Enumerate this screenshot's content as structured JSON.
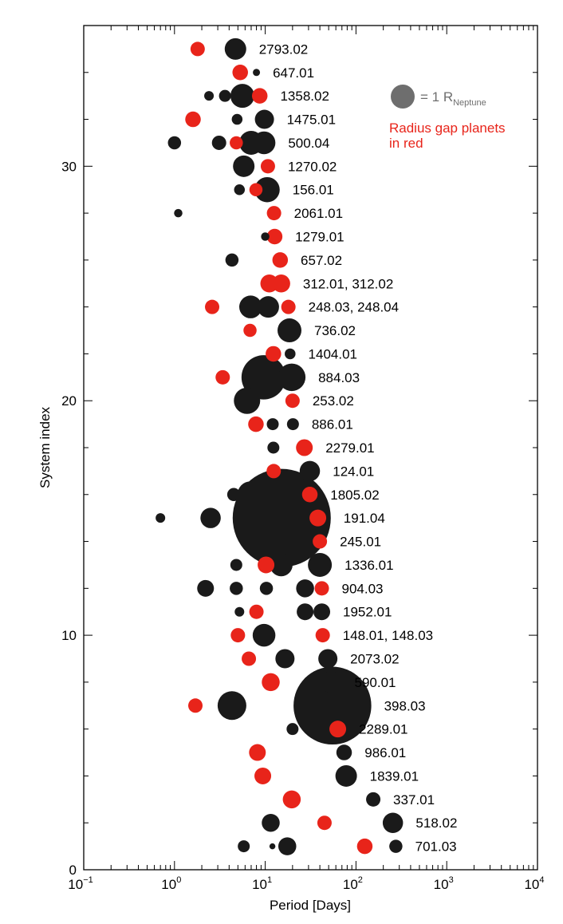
{
  "chart_data": {
    "type": "scatter",
    "xlabel": "Period [Days]",
    "ylabel": "System index",
    "xscale": "log",
    "xlim": [
      0.1,
      10000
    ],
    "ylim": [
      0,
      36
    ],
    "x_ticks": [
      {
        "value": 0.1,
        "base": "10",
        "exp": "−1"
      },
      {
        "value": 1,
        "base": "10",
        "exp": "0"
      },
      {
        "value": 10,
        "base": "10",
        "exp": "1"
      },
      {
        "value": 100,
        "base": "10",
        "exp": "2"
      },
      {
        "value": 1000,
        "base": "10",
        "exp": "3"
      },
      {
        "value": 10000,
        "base": "10",
        "exp": "4"
      }
    ],
    "y_tick_labels": [
      0,
      10,
      20,
      30
    ],
    "legend": {
      "placement": "top-right",
      "size_label": "= 1 R",
      "size_label_subscript": "Neptune",
      "size_marker_radius_rneptune": 1,
      "note_lines": [
        "Radius gap planets",
        "in red"
      ]
    },
    "colors": {
      "normal": "#1a1a1a",
      "radius_gap": "#e8241a",
      "legend_marker": "#6e6e6e",
      "axis": "#000000"
    },
    "systems": [
      {
        "index": 35,
        "label": "2793.02"
      },
      {
        "index": 34,
        "label": "647.01"
      },
      {
        "index": 33,
        "label": "1358.02"
      },
      {
        "index": 32,
        "label": "1475.01"
      },
      {
        "index": 31,
        "label": "500.04"
      },
      {
        "index": 30,
        "label": "1270.02"
      },
      {
        "index": 29,
        "label": "156.01"
      },
      {
        "index": 28,
        "label": "2061.01"
      },
      {
        "index": 27,
        "label": "1279.01"
      },
      {
        "index": 26,
        "label": "657.02"
      },
      {
        "index": 25,
        "label": "312.01, 312.02"
      },
      {
        "index": 24,
        "label": "248.03, 248.04"
      },
      {
        "index": 23,
        "label": "736.02"
      },
      {
        "index": 22,
        "label": "1404.01"
      },
      {
        "index": 21,
        "label": "884.03"
      },
      {
        "index": 20,
        "label": "253.02"
      },
      {
        "index": 19,
        "label": "886.01"
      },
      {
        "index": 18,
        "label": "2279.01"
      },
      {
        "index": 17,
        "label": "124.01"
      },
      {
        "index": 16,
        "label": "1805.02"
      },
      {
        "index": 15,
        "label": "191.04"
      },
      {
        "index": 14,
        "label": "245.01"
      },
      {
        "index": 13,
        "label": "1336.01"
      },
      {
        "index": 12,
        "label": "904.03"
      },
      {
        "index": 11,
        "label": "1952.01"
      },
      {
        "index": 10,
        "label": "148.01, 148.03"
      },
      {
        "index": 9,
        "label": "2073.02"
      },
      {
        "index": 8,
        "label": "590.01"
      },
      {
        "index": 7,
        "label": "398.03"
      },
      {
        "index": 6,
        "label": "2289.01"
      },
      {
        "index": 5,
        "label": "986.01"
      },
      {
        "index": 4,
        "label": "1839.01"
      },
      {
        "index": 3,
        "label": "337.01"
      },
      {
        "index": 2,
        "label": "518.02"
      },
      {
        "index": 1,
        "label": "701.03"
      }
    ],
    "planets": [
      {
        "s": 35,
        "p": 1.8,
        "r": 0.6,
        "gap": true
      },
      {
        "s": 35,
        "p": 4.7,
        "r": 0.9,
        "gap": false
      },
      {
        "s": 34,
        "p": 5.3,
        "r": 0.65,
        "gap": true
      },
      {
        "s": 34,
        "p": 8.0,
        "r": 0.3,
        "gap": false
      },
      {
        "s": 33,
        "p": 2.4,
        "r": 0.4,
        "gap": false
      },
      {
        "s": 33,
        "p": 3.6,
        "r": 0.5,
        "gap": false
      },
      {
        "s": 33,
        "p": 5.6,
        "r": 1.0,
        "gap": false
      },
      {
        "s": 33,
        "p": 8.7,
        "r": 0.65,
        "gap": true
      },
      {
        "s": 32,
        "p": 1.6,
        "r": 0.65,
        "gap": true
      },
      {
        "s": 32,
        "p": 4.9,
        "r": 0.45,
        "gap": false
      },
      {
        "s": 32,
        "p": 9.8,
        "r": 0.8,
        "gap": false
      },
      {
        "s": 31,
        "p": 1.0,
        "r": 0.55,
        "gap": false
      },
      {
        "s": 31,
        "p": 3.1,
        "r": 0.6,
        "gap": false
      },
      {
        "s": 31,
        "p": 4.8,
        "r": 0.55,
        "gap": true
      },
      {
        "s": 31,
        "p": 7.0,
        "r": 1.0,
        "gap": false
      },
      {
        "s": 31,
        "p": 9.7,
        "r": 0.95,
        "gap": false
      },
      {
        "s": 30,
        "p": 5.8,
        "r": 0.9,
        "gap": false
      },
      {
        "s": 30,
        "p": 10.7,
        "r": 0.6,
        "gap": true
      },
      {
        "s": 29,
        "p": 5.2,
        "r": 0.45,
        "gap": false
      },
      {
        "s": 29,
        "p": 7.9,
        "r": 0.55,
        "gap": true
      },
      {
        "s": 29,
        "p": 10.5,
        "r": 1.05,
        "gap": false
      },
      {
        "s": 28,
        "p": 1.1,
        "r": 0.35,
        "gap": false
      },
      {
        "s": 28,
        "p": 12.5,
        "r": 0.6,
        "gap": true
      },
      {
        "s": 27,
        "p": 10.0,
        "r": 0.35,
        "gap": false
      },
      {
        "s": 27,
        "p": 12.7,
        "r": 0.65,
        "gap": true
      },
      {
        "s": 26,
        "p": 4.3,
        "r": 0.55,
        "gap": false
      },
      {
        "s": 26,
        "p": 14.6,
        "r": 0.65,
        "gap": true
      },
      {
        "s": 25,
        "p": 11.1,
        "r": 0.75,
        "gap": true
      },
      {
        "s": 25,
        "p": 15.0,
        "r": 0.75,
        "gap": true
      },
      {
        "s": 24,
        "p": 2.6,
        "r": 0.6,
        "gap": true
      },
      {
        "s": 24,
        "p": 6.9,
        "r": 0.95,
        "gap": false
      },
      {
        "s": 24,
        "p": 10.8,
        "r": 0.9,
        "gap": false
      },
      {
        "s": 24,
        "p": 18.0,
        "r": 0.6,
        "gap": true
      },
      {
        "s": 23,
        "p": 6.8,
        "r": 0.55,
        "gap": true
      },
      {
        "s": 23,
        "p": 18.5,
        "r": 1.0,
        "gap": false
      },
      {
        "s": 22,
        "p": 12.3,
        "r": 0.65,
        "gap": true
      },
      {
        "s": 22,
        "p": 18.8,
        "r": 0.45,
        "gap": false
      },
      {
        "s": 21,
        "p": 3.4,
        "r": 0.6,
        "gap": true
      },
      {
        "s": 21,
        "p": 9.6,
        "r": 1.85,
        "gap": false
      },
      {
        "s": 21,
        "p": 19.6,
        "r": 1.15,
        "gap": false
      },
      {
        "s": 20,
        "p": 6.3,
        "r": 1.1,
        "gap": false
      },
      {
        "s": 20,
        "p": 20.0,
        "r": 0.6,
        "gap": true
      },
      {
        "s": 19,
        "p": 7.9,
        "r": 0.65,
        "gap": true
      },
      {
        "s": 19,
        "p": 12.1,
        "r": 0.5,
        "gap": false
      },
      {
        "s": 19,
        "p": 20.2,
        "r": 0.5,
        "gap": false
      },
      {
        "s": 18,
        "p": 12.3,
        "r": 0.5,
        "gap": false
      },
      {
        "s": 18,
        "p": 27.0,
        "r": 0.7,
        "gap": true
      },
      {
        "s": 17,
        "p": 12.4,
        "r": 0.6,
        "gap": true
      },
      {
        "s": 17,
        "p": 31.0,
        "r": 0.85,
        "gap": false
      },
      {
        "s": 16,
        "p": 4.5,
        "r": 0.55,
        "gap": false
      },
      {
        "s": 16,
        "p": 6.9,
        "r": 1.1,
        "gap": false
      },
      {
        "s": 16,
        "p": 31.0,
        "r": 0.65,
        "gap": true
      },
      {
        "s": 15,
        "p": 0.7,
        "r": 0.4,
        "gap": false
      },
      {
        "s": 15,
        "p": 2.5,
        "r": 0.85,
        "gap": false
      },
      {
        "s": 15,
        "p": 15.2,
        "r": 4.1,
        "gap": false
      },
      {
        "s": 15,
        "p": 38.0,
        "r": 0.7,
        "gap": true
      },
      {
        "s": 14,
        "p": 40.0,
        "r": 0.6,
        "gap": true
      },
      {
        "s": 13,
        "p": 4.8,
        "r": 0.5,
        "gap": false
      },
      {
        "s": 13,
        "p": 10.2,
        "r": 0.7,
        "gap": true
      },
      {
        "s": 13,
        "p": 15.0,
        "r": 0.95,
        "gap": false
      },
      {
        "s": 13,
        "p": 40.0,
        "r": 1.0,
        "gap": false
      },
      {
        "s": 12,
        "p": 2.2,
        "r": 0.7,
        "gap": false
      },
      {
        "s": 12,
        "p": 4.8,
        "r": 0.55,
        "gap": false
      },
      {
        "s": 12,
        "p": 10.3,
        "r": 0.55,
        "gap": false
      },
      {
        "s": 12,
        "p": 27.5,
        "r": 0.75,
        "gap": false
      },
      {
        "s": 12,
        "p": 42.0,
        "r": 0.6,
        "gap": true
      },
      {
        "s": 11,
        "p": 5.2,
        "r": 0.4,
        "gap": false
      },
      {
        "s": 11,
        "p": 8.0,
        "r": 0.6,
        "gap": true
      },
      {
        "s": 11,
        "p": 27.5,
        "r": 0.7,
        "gap": false
      },
      {
        "s": 11,
        "p": 42.0,
        "r": 0.7,
        "gap": false
      },
      {
        "s": 10,
        "p": 5.0,
        "r": 0.6,
        "gap": true
      },
      {
        "s": 10,
        "p": 9.7,
        "r": 0.95,
        "gap": false
      },
      {
        "s": 10,
        "p": 43.0,
        "r": 0.6,
        "gap": true
      },
      {
        "s": 9,
        "p": 6.6,
        "r": 0.6,
        "gap": true
      },
      {
        "s": 9,
        "p": 16.5,
        "r": 0.8,
        "gap": false
      },
      {
        "s": 9,
        "p": 49.0,
        "r": 0.8,
        "gap": false
      },
      {
        "s": 8,
        "p": 11.5,
        "r": 0.75,
        "gap": true
      },
      {
        "s": 8,
        "p": 53.0,
        "r": 0.9,
        "gap": false
      },
      {
        "s": 7,
        "p": 1.7,
        "r": 0.6,
        "gap": true
      },
      {
        "s": 7,
        "p": 4.3,
        "r": 1.2,
        "gap": false
      },
      {
        "s": 7,
        "p": 55.0,
        "r": 3.25,
        "gap": false
      },
      {
        "s": 6,
        "p": 20.0,
        "r": 0.5,
        "gap": false
      },
      {
        "s": 6,
        "p": 63.0,
        "r": 0.7,
        "gap": true
      },
      {
        "s": 5,
        "p": 8.2,
        "r": 0.7,
        "gap": true
      },
      {
        "s": 5,
        "p": 74.0,
        "r": 0.65,
        "gap": false
      },
      {
        "s": 4,
        "p": 9.4,
        "r": 0.7,
        "gap": true
      },
      {
        "s": 4,
        "p": 78.0,
        "r": 0.9,
        "gap": false
      },
      {
        "s": 3,
        "p": 19.6,
        "r": 0.75,
        "gap": true
      },
      {
        "s": 3,
        "p": 155.0,
        "r": 0.6,
        "gap": false
      },
      {
        "s": 2,
        "p": 11.5,
        "r": 0.75,
        "gap": false
      },
      {
        "s": 2,
        "p": 45.0,
        "r": 0.6,
        "gap": true
      },
      {
        "s": 2,
        "p": 255.0,
        "r": 0.85,
        "gap": false
      },
      {
        "s": 1,
        "p": 5.8,
        "r": 0.5,
        "gap": false
      },
      {
        "s": 1,
        "p": 12.0,
        "r": 0.25,
        "gap": false
      },
      {
        "s": 1,
        "p": 17.5,
        "r": 0.75,
        "gap": false
      },
      {
        "s": 1,
        "p": 125.0,
        "r": 0.65,
        "gap": true
      },
      {
        "s": 1,
        "p": 275.0,
        "r": 0.55,
        "gap": false
      }
    ]
  }
}
